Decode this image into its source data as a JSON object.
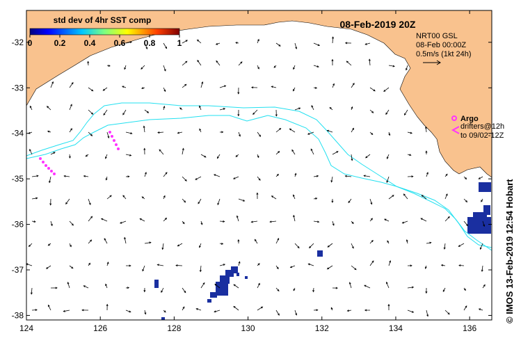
{
  "title": "08-Feb-2019 20Z",
  "colorbar": {
    "title": "std dev of 4hr SST comp",
    "ticks": [
      "0",
      "0.2",
      "0.4",
      "0.6",
      "0.8",
      "1"
    ]
  },
  "current_legend": {
    "line1": "NRT00 GSL",
    "line2": "08-Feb 00:00Z",
    "line3": "0.5m/s (1kt 24h)"
  },
  "argo_legend": {
    "argo_label": "Argo",
    "drifters_line1": "drifters@12h",
    "drifters_line2": "to 09/02-12Z"
  },
  "side_credit": "© IMOS 13-Feb-2019 12:54 Hobart",
  "axes": {
    "x_ticks": [
      "124",
      "126",
      "128",
      "130",
      "132",
      "134",
      "136"
    ],
    "y_ticks": [
      "-32",
      "-33",
      "-34",
      "-35",
      "-36",
      "-37",
      "-38"
    ],
    "lon_range": [
      124,
      136.6
    ],
    "lat_range": [
      -38.1,
      -31.3
    ]
  },
  "colors": {
    "land": "#f9c28e",
    "contour": "#22e0f0",
    "drifter": "#ff33ff",
    "sst_patch": "#1a2fa0"
  }
}
